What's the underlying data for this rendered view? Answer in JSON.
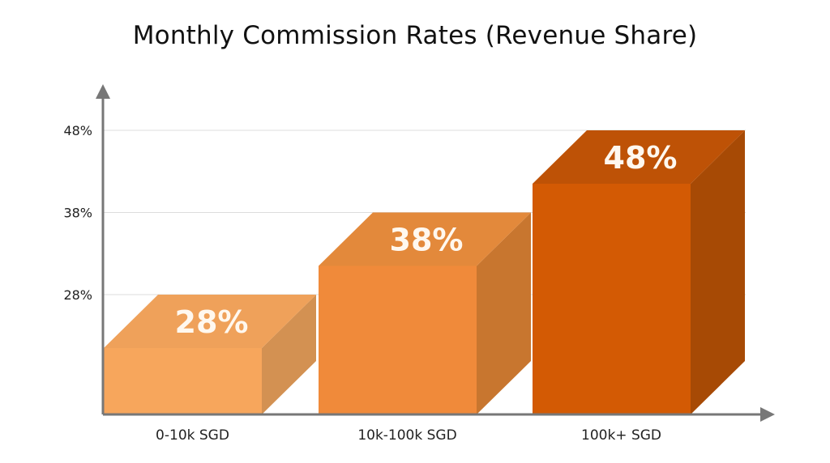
{
  "chart_data": {
    "type": "bar",
    "title": "Monthly Commission Rates (Revenue Share)",
    "xlabel": "",
    "ylabel": "",
    "categories": [
      "0-10k SGD",
      "10k-100k SGD",
      "100k+ SGD"
    ],
    "values": [
      28,
      38,
      48
    ],
    "data_labels": [
      "28%",
      "38%",
      "48%"
    ],
    "yticks": [
      28,
      38,
      48
    ],
    "ytick_labels": [
      "28%",
      "38%",
      "48%"
    ],
    "ylim": [
      19.5,
      48
    ],
    "grid": true,
    "style": "3d-box",
    "colors": [
      {
        "front": "#F7A65C",
        "top": "#EFA15A",
        "side": "#D39152"
      },
      {
        "front": "#F08A3A",
        "top": "#E3893B",
        "side": "#C8762F"
      },
      {
        "front": "#D35A04",
        "top": "#BE5206",
        "side": "#A74A05"
      }
    ]
  }
}
